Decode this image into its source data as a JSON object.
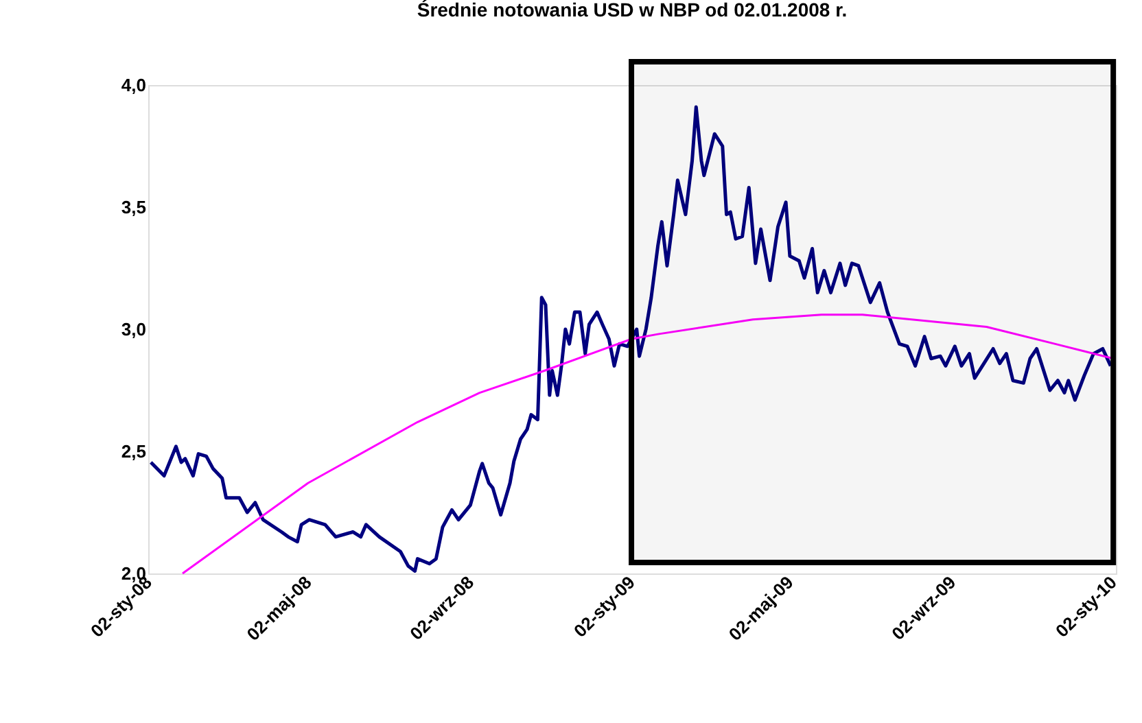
{
  "chart_data": {
    "type": "line",
    "title": "Średnie notowania USD w NBP od 02.01.2008 r.",
    "xlim": [
      "2008-01-02",
      "2010-01-04"
    ],
    "xticks": [
      {
        "value": "2008-01-02",
        "label": "02-sty-08"
      },
      {
        "value": "2008-05-02",
        "label": "02-maj-08"
      },
      {
        "value": "2008-09-02",
        "label": "02-wrz-08"
      },
      {
        "value": "2009-01-02",
        "label": "02-sty-09"
      },
      {
        "value": "2009-05-02",
        "label": "02-maj-09"
      },
      {
        "value": "2009-09-02",
        "label": "02-wrz-09"
      },
      {
        "value": "2010-01-02",
        "label": "02-sty-10"
      }
    ],
    "ylim": [
      2.0,
      4.0
    ],
    "yticks": [
      {
        "value": 2.0,
        "label": "2,0"
      },
      {
        "value": 2.5,
        "label": "2,5"
      },
      {
        "value": 3.0,
        "label": "3,0"
      },
      {
        "value": 3.5,
        "label": "3,5"
      },
      {
        "value": 4.0,
        "label": "4,0"
      }
    ],
    "grid": false,
    "marker": "none",
    "line_style": "solid",
    "bands": [
      {
        "axis": "x",
        "from": "2009-01-02",
        "to": "2010-01-02",
        "color": "#000000"
      }
    ],
    "series": [
      {
        "color": "#000080",
        "x": [
          "2008-01-04",
          "2008-01-14",
          "2008-01-23",
          "2008-01-27",
          "2008-01-30",
          "2008-02-05",
          "2008-02-09",
          "2008-02-15",
          "2008-02-20",
          "2008-02-27",
          "2008-03-01",
          "2008-03-11",
          "2008-03-17",
          "2008-03-23",
          "2008-03-29",
          "2008-04-12",
          "2008-04-17",
          "2008-04-24",
          "2008-04-27",
          "2008-05-03",
          "2008-05-15",
          "2008-05-23",
          "2008-06-05",
          "2008-06-11",
          "2008-06-15",
          "2008-06-25",
          "2008-07-11",
          "2008-07-17",
          "2008-07-22",
          "2008-07-24",
          "2008-08-02",
          "2008-08-07",
          "2008-08-12",
          "2008-08-19",
          "2008-08-24",
          "2008-09-02",
          "2008-09-09",
          "2008-09-11",
          "2008-09-16",
          "2008-09-19",
          "2008-09-25",
          "2008-10-02",
          "2008-10-05",
          "2008-10-10",
          "2008-10-15",
          "2008-10-18",
          "2008-10-23",
          "2008-10-26",
          "2008-10-29",
          "2008-11-01",
          "2008-11-03",
          "2008-11-07",
          "2008-11-10",
          "2008-11-13",
          "2008-11-16",
          "2008-11-20",
          "2008-11-24",
          "2008-11-28",
          "2008-12-01",
          "2008-12-07",
          "2008-12-11",
          "2008-12-16",
          "2008-12-20",
          "2008-12-24",
          "2008-12-30",
          "2009-01-06",
          "2009-01-08",
          "2009-01-13",
          "2009-01-17",
          "2009-01-22",
          "2009-01-25",
          "2009-01-29",
          "2009-02-03",
          "2009-02-06",
          "2009-02-12",
          "2009-02-17",
          "2009-02-20",
          "2009-02-24",
          "2009-02-26",
          "2009-03-06",
          "2009-03-12",
          "2009-03-15",
          "2009-03-18",
          "2009-03-22",
          "2009-03-27",
          "2009-04-01",
          "2009-04-06",
          "2009-04-10",
          "2009-04-17",
          "2009-04-23",
          "2009-04-29",
          "2009-05-02",
          "2009-05-09",
          "2009-05-13",
          "2009-05-19",
          "2009-05-23",
          "2009-05-28",
          "2009-06-02",
          "2009-06-09",
          "2009-06-13",
          "2009-06-18",
          "2009-06-23",
          "2009-07-02",
          "2009-07-09",
          "2009-07-15",
          "2009-07-24",
          "2009-07-30",
          "2009-08-05",
          "2009-08-12",
          "2009-08-17",
          "2009-08-24",
          "2009-08-28",
          "2009-09-04",
          "2009-09-09",
          "2009-09-15",
          "2009-09-19",
          "2009-09-26",
          "2009-10-03",
          "2009-10-08",
          "2009-10-13",
          "2009-10-18",
          "2009-10-26",
          "2009-10-31",
          "2009-11-05",
          "2009-11-15",
          "2009-11-21",
          "2009-11-26",
          "2009-11-29",
          "2009-12-04",
          "2009-12-11",
          "2009-12-18",
          "2009-12-25",
          "2009-12-31"
        ],
        "values": [
          2.455,
          2.4,
          2.52,
          2.455,
          2.47,
          2.4,
          2.49,
          2.48,
          2.43,
          2.39,
          2.31,
          2.31,
          2.25,
          2.29,
          2.22,
          2.17,
          2.15,
          2.13,
          2.2,
          2.22,
          2.2,
          2.15,
          2.17,
          2.15,
          2.2,
          2.15,
          2.09,
          2.03,
          2.01,
          2.06,
          2.04,
          2.06,
          2.19,
          2.26,
          2.22,
          2.28,
          2.42,
          2.45,
          2.37,
          2.35,
          2.24,
          2.37,
          2.46,
          2.55,
          2.59,
          2.65,
          2.63,
          3.13,
          3.1,
          2.73,
          2.83,
          2.73,
          2.85,
          3.0,
          2.94,
          3.07,
          3.07,
          2.9,
          3.02,
          3.07,
          3.02,
          2.96,
          2.85,
          2.94,
          2.93,
          3.0,
          2.89,
          3.0,
          3.13,
          3.34,
          3.44,
          3.26,
          3.47,
          3.61,
          3.47,
          3.69,
          3.91,
          3.69,
          3.63,
          3.8,
          3.75,
          3.47,
          3.48,
          3.37,
          3.38,
          3.58,
          3.27,
          3.41,
          3.2,
          3.42,
          3.52,
          3.3,
          3.28,
          3.21,
          3.33,
          3.15,
          3.24,
          3.15,
          3.27,
          3.18,
          3.27,
          3.26,
          3.11,
          3.19,
          3.07,
          2.94,
          2.93,
          2.85,
          2.97,
          2.88,
          2.89,
          2.85,
          2.93,
          2.85,
          2.9,
          2.8,
          2.86,
          2.92,
          2.86,
          2.9,
          2.79,
          2.78,
          2.88,
          2.92,
          2.75,
          2.79,
          2.74,
          2.79,
          2.71,
          2.81,
          2.9,
          2.92,
          2.85
        ]
      },
      {
        "type": "line",
        "color": "#ff00ff",
        "x": [
          "2008-01-28",
          "2008-05-02",
          "2008-07-24",
          "2008-09-09",
          "2008-10-28",
          "2009-01-02",
          "2009-01-22",
          "2009-04-04",
          "2009-05-26",
          "2009-06-26",
          "2009-09-28",
          "2009-11-19",
          "2010-01-02"
        ],
        "values": [
          2.0,
          2.37,
          2.62,
          2.74,
          2.83,
          2.96,
          2.98,
          3.04,
          3.06,
          3.06,
          3.01,
          2.94,
          2.88
        ]
      }
    ]
  }
}
